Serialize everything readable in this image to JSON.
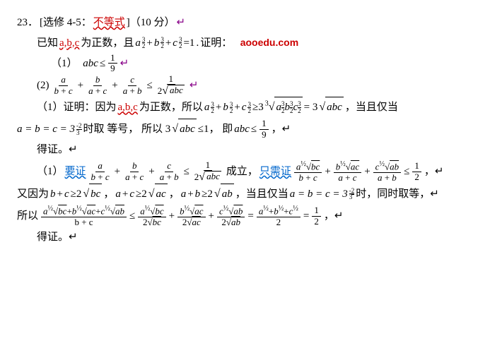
{
  "q": {
    "num": "23．",
    "tag": "[选修 4-5：",
    "topic": "不等式",
    "close": "]（10 分）",
    "ret": "↵"
  },
  "given": {
    "pre": "已知 ",
    "abc": "a,b,c",
    "mid": " 为正数，且 ",
    "eq": "=1",
    "proof": "证明：",
    "url": "aooedu.com"
  },
  "p1": {
    "label": "（1）",
    "abc": "abc",
    "le": "≤"
  },
  "f1": {
    "n": "1",
    "d": "9"
  },
  "p2": {
    "label": "(2)",
    "le": "≤"
  },
  "f2a": {
    "n": "a",
    "d": "b + c"
  },
  "f2b": {
    "n": "b",
    "d": "a + c"
  },
  "f2c": {
    "n": "c",
    "d": "a + b"
  },
  "f2r": {
    "n": "1",
    "d_pre": "2",
    "d_arg": "abc"
  },
  "pr1": {
    "label": "（1）证明：因为 ",
    "abc": "a,b,c",
    "mid": " 为正数，所以 ",
    "ge": "≥3",
    "eq": "= 3",
    "tail": "，当且仅当"
  },
  "eqline": {
    "eq": "a = b = c = 3",
    "exp_n": "2",
    "exp_d": "3",
    "mid": "时取 等号， 所以 3",
    "arg": "abc",
    "le": "≤1， 即 ",
    "abc2": "abc",
    "le2": "≤",
    "tail": "，↵"
  },
  "done": "得证。↵",
  "pr2": {
    "label": "（1）",
    "need": "要证",
    "mid": " 成立，",
    "only": "只需证",
    "le": "≤",
    "half_n": "1",
    "half_d": "2",
    "tail": "，↵"
  },
  "line2": {
    "pre": "又因为",
    "ge": "≥2",
    "mid": "，当且仅当 ",
    "eq": "a = b = c = 3",
    "t": " 时，同时取等，↵"
  },
  "bc": "bc",
  "ac": "ac",
  "ab": "ab",
  "so": {
    "label": "所以 ",
    "le1": "≤",
    "eq": "=",
    "tail": "，↵"
  },
  "fL": {
    "d": "b + c"
  },
  "fr1": {
    "d_pre": "2",
    "d_arg": "bc"
  },
  "fr2": {
    "d_pre": "2",
    "d_arg": "ac"
  },
  "fr3": {
    "d_pre": "2",
    "d_arg": "ab"
  },
  "exp_sm": {
    "n": "3",
    "d": "2"
  },
  "neg": "-"
}
